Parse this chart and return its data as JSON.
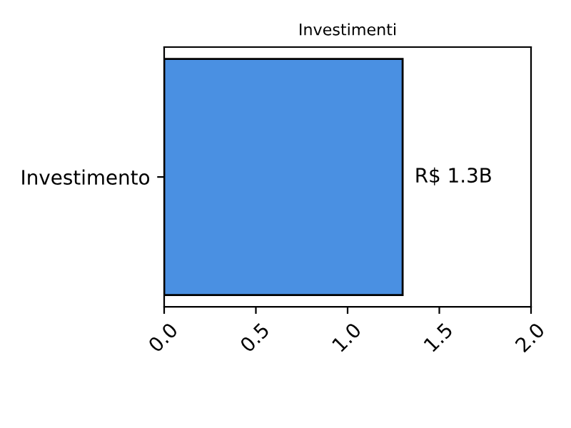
{
  "chart_data": {
    "type": "bar",
    "orientation": "horizontal",
    "title": "Investimenti",
    "categories": [
      "Investimento"
    ],
    "values": [
      1.3
    ],
    "color": "#4a90e2",
    "value_labels": [
      "R$ 1.3B"
    ],
    "xlim": [
      0,
      2
    ],
    "xticks": [
      {
        "value": 0,
        "label": "0.0"
      },
      {
        "value": 0.5,
        "label": "0.5"
      },
      {
        "value": 1,
        "label": "1.0"
      },
      {
        "value": 1.5,
        "label": "1.5"
      },
      {
        "value": 2,
        "label": "2.0"
      }
    ],
    "grid": false
  }
}
